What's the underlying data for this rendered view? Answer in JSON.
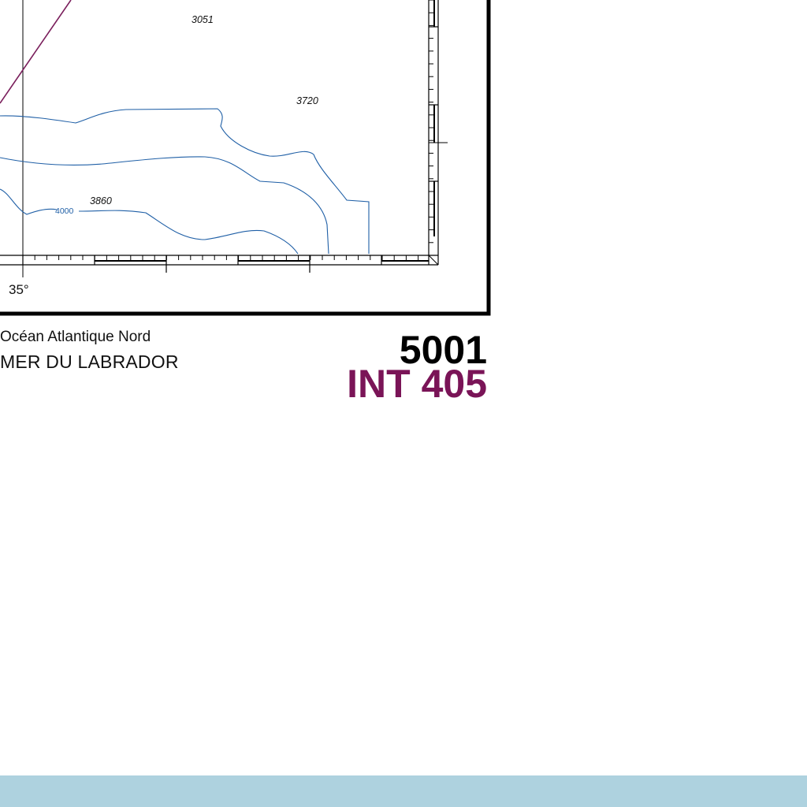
{
  "map": {
    "soundings": [
      {
        "label": "3051"
      },
      {
        "label": "3720"
      },
      {
        "label": "3860"
      }
    ],
    "contour_label": "4000",
    "longitude_label": "35°"
  },
  "title": {
    "region": "Océan Atlantique Nord",
    "sea": "MER DU LABRADOR"
  },
  "chart_number": {
    "national": "5001",
    "international": "INT 405"
  },
  "colors": {
    "border": "#000000",
    "contour": "#1f5fa6",
    "limit_line": "#7a1f5c",
    "int_number": "#7a1457",
    "footer_band": "#aed2df"
  }
}
